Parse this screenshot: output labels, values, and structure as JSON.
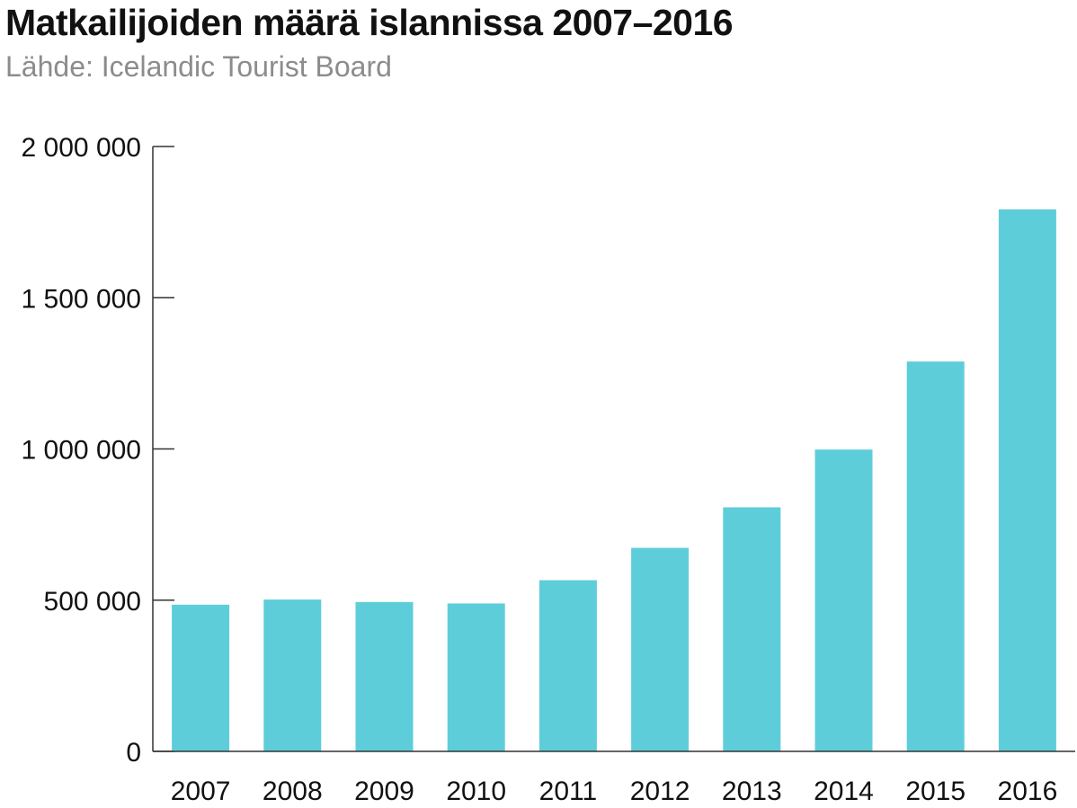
{
  "colors": {
    "bar": "#5ecdda",
    "axis": "#333333",
    "text": "#111111",
    "subtitle": "#8c8c8c"
  },
  "chart_data": {
    "type": "bar",
    "title": "Matkailijoiden määrä islannissa 2007–2016",
    "subtitle": "Lähde: Icelandic Tourist Board",
    "xlabel": "",
    "ylabel": "",
    "categories": [
      "2007",
      "2008",
      "2009",
      "2010",
      "2011",
      "2012",
      "2013",
      "2014",
      "2015",
      "2016"
    ],
    "values": [
      485000,
      502000,
      494000,
      489000,
      566000,
      673000,
      807000,
      998000,
      1289000,
      1792000
    ],
    "ylim": [
      0,
      2000000
    ],
    "yticks": [
      0,
      500000,
      1000000,
      1500000,
      2000000
    ],
    "ytick_labels": [
      "0",
      "500 000",
      "1 000 000",
      "1 500 000",
      "2 000 000"
    ],
    "grid": false,
    "legend": "none"
  }
}
